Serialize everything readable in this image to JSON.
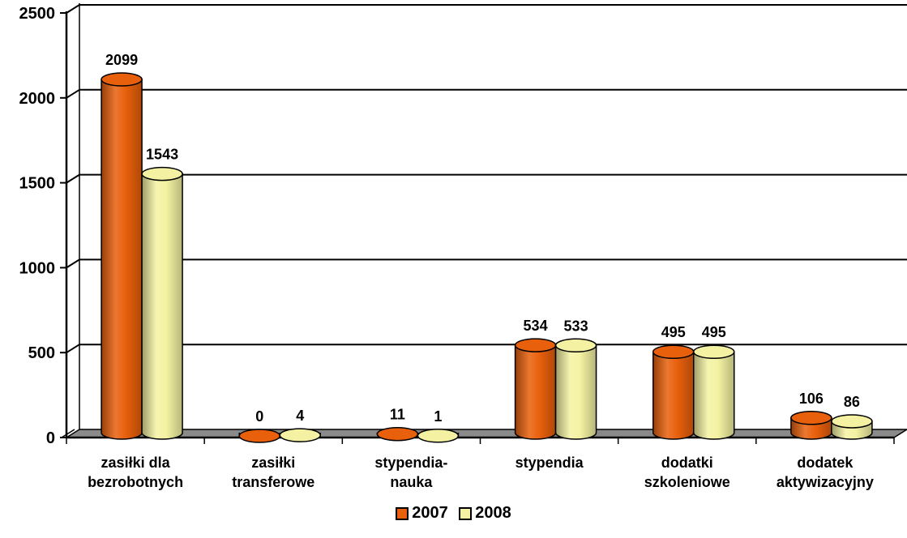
{
  "chart_data": {
    "type": "bar",
    "categories": [
      [
        "zasiłki dla",
        "bezrobotnych"
      ],
      [
        "zasiłki",
        "transferowe"
      ],
      [
        "stypendia-",
        "nauka"
      ],
      [
        "stypendia"
      ],
      [
        "dodatki",
        "szkoleniowe"
      ],
      [
        "dodatek",
        "aktywizacyjny"
      ]
    ],
    "series": [
      {
        "name": "2007",
        "values": [
          2099,
          0,
          11,
          534,
          495,
          106
        ]
      },
      {
        "name": "2008",
        "values": [
          1543,
          4,
          1,
          533,
          495,
          86
        ]
      }
    ],
    "ylim": [
      0,
      2500
    ],
    "yticks": [
      "0",
      "500",
      "1000",
      "1500",
      "2000",
      "2500"
    ],
    "grid": true,
    "legend_position": "bottom",
    "style": "3d-cylinder",
    "colors": {
      "2007": "#e8600c",
      "2008": "#f4f2a2",
      "floor": "#8a8a8a"
    }
  },
  "legend": {
    "items": [
      {
        "label": "2007",
        "color": "#e8600c"
      },
      {
        "label": "2008",
        "color": "#f4f2a2"
      }
    ]
  }
}
